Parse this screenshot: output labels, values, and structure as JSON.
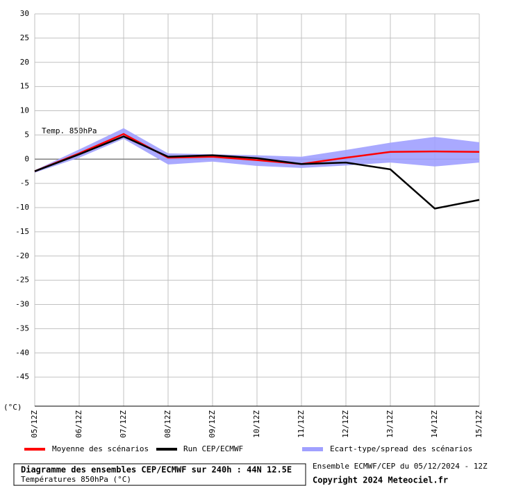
{
  "chart_data": {
    "type": "line",
    "annotation": "Temp. 850hPa",
    "y_unit_label": "(°C)",
    "categories": [
      "05/12Z",
      "06/12Z",
      "07/12Z",
      "08/12Z",
      "09/12Z",
      "10/12Z",
      "11/12Z",
      "12/12Z",
      "13/12Z",
      "14/12Z",
      "15/12Z"
    ],
    "series": [
      {
        "name": "Ecart-type/spread des scénarios",
        "color": "#a0a0ff",
        "low": [
          -2.8,
          0.3,
          4.2,
          -1.1,
          -0.5,
          -1.4,
          -1.8,
          -1.3,
          -0.7,
          -1.5,
          -0.7
        ],
        "high": [
          -2.3,
          2,
          6.4,
          1.2,
          1,
          0.8,
          0.5,
          1.9,
          3.4,
          4.6,
          3.5
        ]
      },
      {
        "name": "Moyenne des scénarios",
        "color": "#ff0000",
        "values": [
          -2.5,
          1.2,
          5.2,
          0.3,
          0.5,
          -0.2,
          -1,
          0.3,
          1.5,
          1.6,
          1.5
        ]
      },
      {
        "name": "Run CEP/ECMWF",
        "color": "#000000",
        "values": [
          -2.5,
          1,
          4.7,
          0.5,
          0.8,
          0.2,
          -1,
          -0.7,
          -2.1,
          -10.2,
          -8.4
        ]
      }
    ],
    "ylim": [
      -51,
      30
    ],
    "yticks": [
      30,
      25,
      20,
      15,
      10,
      5,
      0,
      -5,
      -10,
      -15,
      -20,
      -25,
      -30,
      -35,
      -40,
      -45
    ],
    "grid": true,
    "footer": {
      "title": "Diagramme des ensembles CEP/ECMWF sur 240h : 44N 12.5E",
      "subtitle": "Températures 850hPa (°C)",
      "run_info": "Ensemble ECMWF/CEP du 05/12/2024 - 12Z",
      "copyright": "Copyright 2024 Meteociel.fr"
    }
  }
}
